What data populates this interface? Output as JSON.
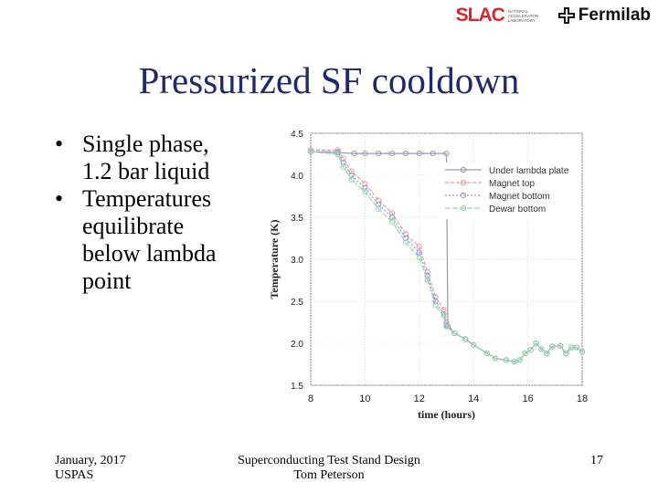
{
  "header": {
    "logo_slac": "SLAC",
    "logo_slac_sub": "NATIONAL ACCELERATOR LABORATORY",
    "logo_fermilab": "Fermilab"
  },
  "slide": {
    "title": "Pressurized SF cooldown",
    "bullets": [
      {
        "lines": [
          "Single phase,",
          "1.2 bar liquid"
        ]
      },
      {
        "lines": [
          "Temperatures",
          "equilibrate",
          "below lambda",
          "point"
        ]
      }
    ]
  },
  "footer": {
    "left_line1": "January, 2017",
    "left_line2": "USPAS",
    "center_line1": "Superconducting Test Stand Design",
    "center_line2": "Tom Peterson",
    "page_number": "17"
  },
  "colors": {
    "title": "#1f2a6b",
    "slac_red": "#d7262e",
    "series": [
      "#9a9aa8",
      "#e49aa2",
      "#9a9ae0",
      "#90d8a8"
    ]
  },
  "chart_data": {
    "type": "line",
    "title": "",
    "xlabel": "time (hours)",
    "ylabel": "Temperature (K)",
    "xlim": [
      8,
      18
    ],
    "ylim": [
      1.5,
      4.5
    ],
    "xticks": [
      8,
      10,
      12,
      14,
      16,
      18
    ],
    "yticks": [
      1.5,
      2.0,
      2.5,
      3.0,
      3.5,
      4.0,
      4.5
    ],
    "grid": true,
    "legend_position": "top-right",
    "series": [
      {
        "name": "Under lambda plate",
        "x": [
          8.0,
          9.0,
          9.6,
          10.0,
          10.5,
          11.0,
          11.5,
          12.0,
          12.5,
          13.0,
          13.05,
          13.3,
          13.7,
          14.0,
          14.5,
          14.8,
          15.2,
          15.5,
          15.7,
          15.9,
          16.1,
          16.3,
          16.5,
          16.7,
          16.9,
          17.2,
          17.4,
          17.6,
          17.8,
          18.0
        ],
        "y": [
          4.28,
          4.27,
          4.26,
          4.26,
          4.26,
          4.26,
          4.26,
          4.26,
          4.26,
          4.26,
          2.2,
          2.12,
          2.05,
          1.98,
          1.88,
          1.82,
          1.8,
          1.78,
          1.8,
          1.88,
          1.92,
          2.0,
          1.93,
          1.88,
          1.96,
          1.97,
          1.88,
          1.95,
          1.95,
          1.9
        ]
      },
      {
        "name": "Magnet top",
        "x": [
          8.0,
          9.0,
          9.2,
          9.5,
          10.0,
          10.5,
          11.0,
          11.5,
          12.0,
          12.3,
          12.6,
          12.9,
          13.0,
          13.3,
          13.7,
          14.0,
          14.5,
          14.8,
          15.2,
          15.5,
          15.7,
          15.9,
          16.1,
          16.3,
          16.5,
          16.7,
          16.9,
          17.2,
          17.4,
          17.6,
          17.8,
          18.0
        ],
        "y": [
          4.3,
          4.3,
          4.2,
          4.05,
          3.9,
          3.7,
          3.55,
          3.3,
          3.15,
          2.85,
          2.55,
          2.4,
          2.25,
          2.12,
          2.05,
          1.98,
          1.88,
          1.82,
          1.8,
          1.78,
          1.8,
          1.88,
          1.92,
          2.0,
          1.93,
          1.88,
          1.96,
          1.97,
          1.88,
          1.95,
          1.95,
          1.9
        ]
      },
      {
        "name": "Magnet bottom",
        "x": [
          8.0,
          9.0,
          9.2,
          9.5,
          10.0,
          10.5,
          11.0,
          11.5,
          12.0,
          12.3,
          12.6,
          12.9,
          13.0,
          13.3,
          13.7,
          14.0,
          14.5,
          14.8,
          15.2,
          15.5,
          15.7,
          15.9,
          16.1,
          16.3,
          16.5,
          16.7,
          16.9,
          17.2,
          17.4,
          17.6,
          17.8,
          18.0
        ],
        "y": [
          4.28,
          4.28,
          4.15,
          4.0,
          3.85,
          3.65,
          3.5,
          3.25,
          3.08,
          2.8,
          2.5,
          2.35,
          2.22,
          2.12,
          2.05,
          1.98,
          1.88,
          1.82,
          1.8,
          1.78,
          1.8,
          1.88,
          1.92,
          2.0,
          1.93,
          1.88,
          1.96,
          1.97,
          1.88,
          1.95,
          1.95,
          1.9
        ]
      },
      {
        "name": "Dewar bottom",
        "x": [
          8.0,
          9.0,
          9.2,
          9.5,
          10.0,
          10.5,
          11.0,
          11.5,
          12.0,
          12.3,
          12.6,
          12.9,
          13.0,
          13.3,
          13.7,
          14.0,
          14.5,
          14.8,
          15.2,
          15.5,
          15.7,
          15.9,
          16.1,
          16.3,
          16.5,
          16.7,
          16.9,
          17.2,
          17.4,
          17.6,
          17.8,
          18.0
        ],
        "y": [
          4.28,
          4.25,
          4.1,
          3.95,
          3.8,
          3.6,
          3.45,
          3.2,
          3.02,
          2.75,
          2.45,
          2.32,
          2.2,
          2.12,
          2.05,
          1.98,
          1.88,
          1.82,
          1.8,
          1.78,
          1.8,
          1.88,
          1.92,
          2.0,
          1.93,
          1.88,
          1.96,
          1.97,
          1.88,
          1.95,
          1.95,
          1.9
        ]
      }
    ]
  }
}
